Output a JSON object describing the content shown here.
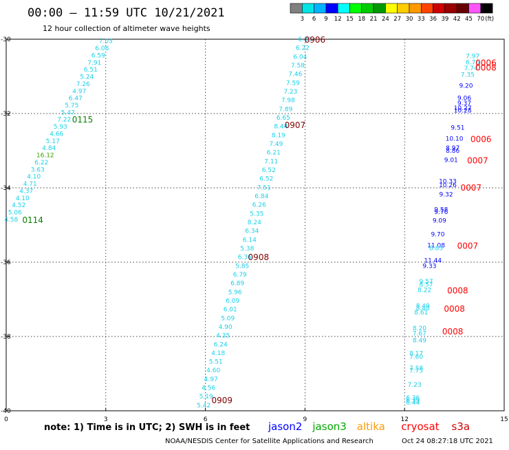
{
  "header": {
    "title": "00:00 – 11:59 UTC 10/21/2021",
    "subtitle": "12 hour collection of altimeter wave heights"
  },
  "scale": {
    "labels": [
      "3",
      "6",
      "9",
      "12",
      "15",
      "18",
      "21",
      "24",
      "27",
      "30",
      "33",
      "36",
      "39",
      "42",
      "45",
      "70"
    ],
    "unit": "(ft)",
    "colors": [
      "#808080",
      "#00e5e5",
      "#00b4ff",
      "#0000ff",
      "#00ffff",
      "#00ff00",
      "#00cc00",
      "#009900",
      "#ffff00",
      "#ffcc00",
      "#ff9900",
      "#ff4400",
      "#cc0000",
      "#990000",
      "#660000",
      "#ff55ff",
      "#000000"
    ]
  },
  "footer": {
    "note": "note:  1) Time is in UTC;  2) SWH is in feet",
    "legend": [
      {
        "label": "jason2",
        "color": "#0000ff"
      },
      {
        "label": "jason3",
        "color": "#00aa00"
      },
      {
        "label": "altika",
        "color": "#ff9900"
      },
      {
        "label": "cryosat",
        "color": "#ff0000"
      },
      {
        "label": "s3a",
        "color": "#cc0000"
      }
    ],
    "credit": "NOAA/NESDIS Center for Satellite Applications and Research",
    "timestamp": "Oct 24 08:27:18 UTC 2021"
  },
  "chart_data": {
    "type": "scatter",
    "xlim": [
      0,
      15
    ],
    "ylim": [
      -40,
      -30
    ],
    "xticks": [
      "0",
      "3",
      "6",
      "9",
      "12",
      "15"
    ],
    "yticks": [
      "-30",
      "-32",
      "-34",
      "-36",
      "-38",
      "-40"
    ],
    "grid": true,
    "tracks": [
      {
        "color": "#19d0e8",
        "values": [
          "7.03",
          "6.08",
          "6.59",
          "7.91",
          "6.51",
          "5.24",
          "7.26",
          "4.97",
          "6.47",
          "5.75",
          "5.47",
          "7.22",
          "5.93",
          "4.66",
          "5.17",
          "4.84",
          "16.12",
          "6.22",
          "3.63",
          "4.10",
          "4.71",
          "4.37",
          "4.10",
          "4.52",
          "5.06",
          "4.58"
        ],
        "highlight": {
          "16.12": "#3aa500"
        },
        "x_start": 3.0,
        "y_start": -30.05,
        "x_end": 0.15,
        "y_end": -34.85,
        "labels": [
          {
            "text": "0115",
            "x": 2.3,
            "y": -32.15,
            "color": "#0a7d00"
          },
          {
            "text": "0114",
            "x": 0.8,
            "y": -34.85,
            "color": "#0a7d00"
          }
        ]
      },
      {
        "color": "#19d0e8",
        "values": [
          "6.39",
          "6.22",
          "6.04",
          "7.58",
          "7.46",
          "7.59",
          "7.23",
          "7.98",
          "7.89",
          "6.65",
          "8.44",
          "8.19",
          "7.49",
          "6.21",
          "7.11",
          "6.52",
          "6.52",
          "7.51",
          "6.84",
          "6.26",
          "5.35",
          "8.24",
          "6.34",
          "6.14",
          "5.38",
          "6.36",
          "5.85",
          "6.79",
          "6.89",
          "5.96",
          "6.09",
          "6.01",
          "5.09",
          "4.90",
          "4.35",
          "6.24",
          "4.18",
          "5.51",
          "4.60",
          "4.97",
          "4.56",
          "5.19",
          "5.42"
        ],
        "x_start": 9.0,
        "y_start": -30.0,
        "x_end": 5.95,
        "y_end": -39.85,
        "labels": [
          {
            "text": "0906",
            "x": 9.3,
            "y": -30.0,
            "color": "#800000"
          },
          {
            "text": "0907",
            "x": 8.7,
            "y": -32.3,
            "color": "#800000"
          },
          {
            "text": "0908",
            "x": 7.6,
            "y": -35.85,
            "color": "#800000"
          },
          {
            "text": "0909",
            "x": 6.5,
            "y": -39.7,
            "color": "#800000"
          }
        ]
      },
      {
        "values": [
          {
            "v": "7.97",
            "c": "#19d0e8",
            "x": 14.05,
            "y": -30.45
          },
          {
            "v": "6.76",
            "c": "#19d0e8",
            "x": 14.05,
            "y": -30.62
          },
          {
            "v": "7.74",
            "c": "#19d0e8",
            "x": 14.0,
            "y": -30.78
          },
          {
            "v": "7.35",
            "c": "#19d0e8",
            "x": 13.9,
            "y": -30.95
          },
          {
            "v": "9.20",
            "c": "#0000ff",
            "x": 13.85,
            "y": -31.25
          },
          {
            "v": "9.06",
            "c": "#0000ff",
            "x": 13.8,
            "y": -31.58
          },
          {
            "v": "9.37",
            "c": "#0000ff",
            "x": 13.8,
            "y": -31.72
          },
          {
            "v": "10.27",
            "c": "#0000ff",
            "x": 13.75,
            "y": -31.85
          },
          {
            "v": "10.28",
            "c": "#0000ff",
            "x": 13.75,
            "y": -31.92
          },
          {
            "v": "9.51",
            "c": "#0000ff",
            "x": 13.6,
            "y": -32.38
          },
          {
            "v": "10.10",
            "c": "#0000ff",
            "x": 13.5,
            "y": -32.68
          },
          {
            "v": "8.97",
            "c": "#0000ff",
            "x": 13.45,
            "y": -32.93
          },
          {
            "v": "8.86",
            "c": "#0000ff",
            "x": 13.45,
            "y": -33.0
          },
          {
            "v": "9.01",
            "c": "#0000ff",
            "x": 13.4,
            "y": -33.25
          },
          {
            "v": "10.33",
            "c": "#0000ff",
            "x": 13.3,
            "y": -33.82
          },
          {
            "v": "10.26",
            "c": "#0000ff",
            "x": 13.3,
            "y": -33.93
          },
          {
            "v": "9.32",
            "c": "#0000ff",
            "x": 13.25,
            "y": -34.18
          },
          {
            "v": "9.58",
            "c": "#0000ff",
            "x": 13.1,
            "y": -34.58
          },
          {
            "v": "9.76",
            "c": "#0000ff",
            "x": 13.1,
            "y": -34.65
          },
          {
            "v": "9.09",
            "c": "#0000ff",
            "x": 13.05,
            "y": -34.88
          },
          {
            "v": "9.70",
            "c": "#0000ff",
            "x": 13.0,
            "y": -35.25
          },
          {
            "v": "11.08",
            "c": "#0000ff",
            "x": 12.95,
            "y": -35.55
          },
          {
            "v": "8.85",
            "c": "#19d0e8",
            "x": 12.95,
            "y": -35.62
          },
          {
            "v": "11.44",
            "c": "#0000ff",
            "x": 12.85,
            "y": -35.95
          },
          {
            "v": "9.33",
            "c": "#0000ff",
            "x": 12.75,
            "y": -36.1
          },
          {
            "v": "9.57",
            "c": "#19d0e8",
            "x": 12.65,
            "y": -36.52
          },
          {
            "v": "8.57",
            "c": "#19d0e8",
            "x": 12.65,
            "y": -36.6
          },
          {
            "v": "8.22",
            "c": "#19d0e8",
            "x": 12.6,
            "y": -36.75
          },
          {
            "v": "8.49",
            "c": "#19d0e8",
            "x": 12.55,
            "y": -37.18
          },
          {
            "v": "8.40",
            "c": "#19d0e8",
            "x": 12.55,
            "y": -37.24
          },
          {
            "v": "8.61",
            "c": "#19d0e8",
            "x": 12.5,
            "y": -37.35
          },
          {
            "v": "8.20",
            "c": "#19d0e8",
            "x": 12.45,
            "y": -37.78
          },
          {
            "v": "7.67",
            "c": "#19d0e8",
            "x": 12.45,
            "y": -37.92
          },
          {
            "v": "8.49",
            "c": "#19d0e8",
            "x": 12.45,
            "y": -38.1
          },
          {
            "v": "8.17",
            "c": "#19d0e8",
            "x": 12.35,
            "y": -38.45
          },
          {
            "v": "7.60",
            "c": "#19d0e8",
            "x": 12.35,
            "y": -38.55
          },
          {
            "v": "7.58",
            "c": "#19d0e8",
            "x": 12.35,
            "y": -38.85
          },
          {
            "v": "7.75",
            "c": "#19d0e8",
            "x": 12.35,
            "y": -38.92
          },
          {
            "v": "7.23",
            "c": "#19d0e8",
            "x": 12.3,
            "y": -39.3
          },
          {
            "v": "6.36",
            "c": "#19d0e8",
            "x": 12.25,
            "y": -39.65
          },
          {
            "v": "6.39",
            "c": "#19d0e8",
            "x": 12.25,
            "y": -39.72
          },
          {
            "v": "6.44",
            "c": "#19d0e8",
            "x": 12.25,
            "y": -39.78
          }
        ],
        "labels": [
          {
            "text": "0006",
            "x": 14.45,
            "y": -30.62,
            "color": "#ff0000"
          },
          {
            "text": "0008",
            "x": 14.45,
            "y": -30.75,
            "color": "#ff0000"
          },
          {
            "text": "0006",
            "x": 14.3,
            "y": -32.68,
            "color": "#ff0000"
          },
          {
            "text": "0007",
            "x": 14.2,
            "y": -33.25,
            "color": "#ff0000"
          },
          {
            "text": "0007",
            "x": 14.0,
            "y": -33.98,
            "color": "#ff0000"
          },
          {
            "text": "0007",
            "x": 13.9,
            "y": -35.55,
            "color": "#ff0000"
          },
          {
            "text": "0008",
            "x": 13.6,
            "y": -36.75,
            "color": "#ff0000"
          },
          {
            "text": "0008",
            "x": 13.5,
            "y": -37.24,
            "color": "#ff0000"
          },
          {
            "text": "0008",
            "x": 13.45,
            "y": -37.85,
            "color": "#ff0000"
          }
        ]
      }
    ]
  }
}
